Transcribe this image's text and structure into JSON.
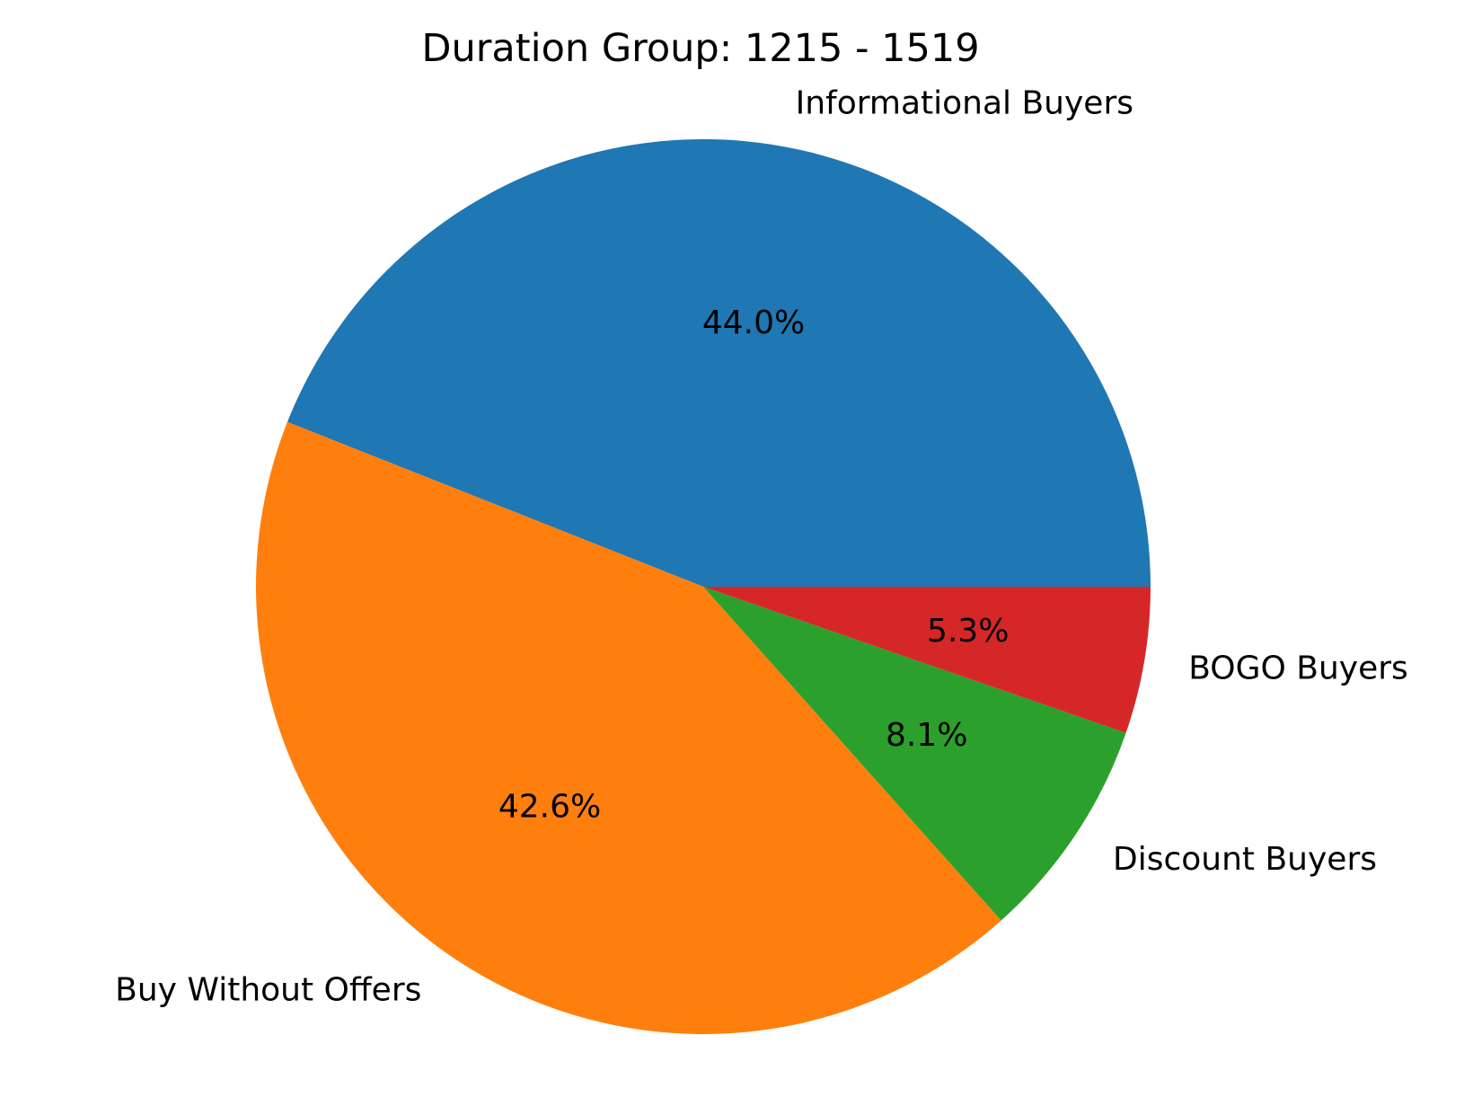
{
  "chart_data": {
    "type": "pie",
    "title": "Duration Group: 1215 - 1519",
    "slices": [
      {
        "label": "Informational Buyers",
        "value": 44.0,
        "pct_label": "44.0%",
        "color": "#1f77b4"
      },
      {
        "label": "Buy Without Offers",
        "value": 42.6,
        "pct_label": "42.6%",
        "color": "#ff7f0e"
      },
      {
        "label": "Discount Buyers",
        "value": 8.1,
        "pct_label": "8.1%",
        "color": "#2ca02c"
      },
      {
        "label": "BOGO Buyers",
        "value": 5.3,
        "pct_label": "5.3%",
        "color": "#d62728"
      }
    ],
    "start_angle_deg": 0,
    "direction": "counterclockwise"
  }
}
